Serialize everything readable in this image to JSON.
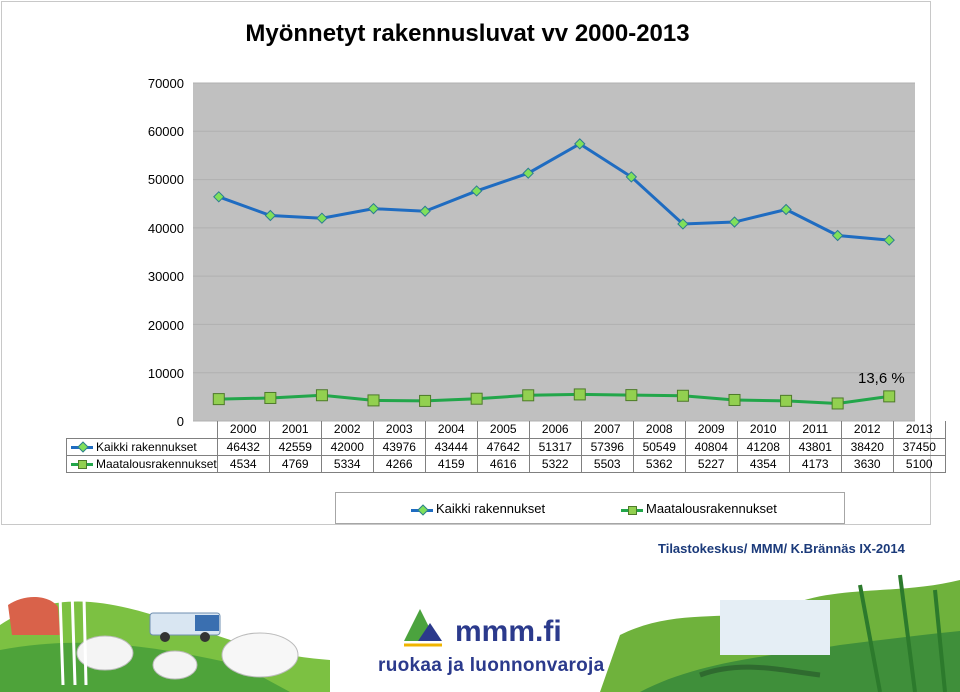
{
  "chart_data": {
    "type": "line",
    "title": "Myönnetyt rakennusluvat vv 2000-2013",
    "categories": [
      "2000",
      "2001",
      "2002",
      "2003",
      "2004",
      "2005",
      "2006",
      "2007",
      "2008",
      "2009",
      "2010",
      "2011",
      "2012",
      "2013"
    ],
    "series": [
      {
        "name": "Kaikki rakennukset",
        "values": [
          46432,
          42559,
          42000,
          43976,
          43444,
          47642,
          51317,
          57396,
          50549,
          40804,
          41208,
          43801,
          38420,
          37450
        ],
        "color": "#1f6cc1",
        "marker": "diamond",
        "marker_color": "#7fe05a"
      },
      {
        "name": "Maatalousrakennukset",
        "values": [
          4534,
          4769,
          5334,
          4266,
          4159,
          4616,
          5322,
          5503,
          5362,
          5227,
          4354,
          4173,
          3630,
          5100
        ],
        "color": "#22a64a",
        "marker": "square",
        "marker_color": "#92d050"
      }
    ],
    "ylim": [
      0,
      70000
    ],
    "yticks": [
      "70000",
      "60000",
      "50000",
      "40000",
      "30000",
      "20000",
      "10000",
      "0"
    ],
    "xlabel": "",
    "ylabel": "",
    "legend": "bottom",
    "data_table": true,
    "annotation": "13,6 %",
    "plot_background": "#c0c0c0"
  },
  "credit": "Tilastokeskus/  MMM/ K.Brännäs IX-2014",
  "logo": {
    "name": "mmm.fi",
    "tagline": "ruokaa ja luonnonvaroja",
    "icon": "mountain-logo-icon"
  },
  "colors": {
    "accent_blue": "#2b3a8c",
    "logo_green": "#4ba33e"
  }
}
